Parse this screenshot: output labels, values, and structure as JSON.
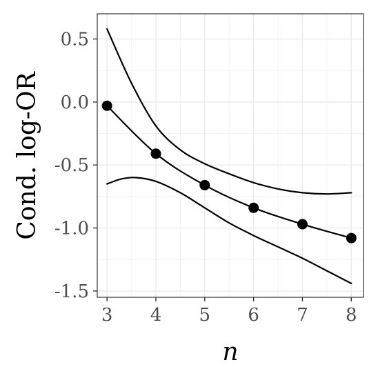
{
  "chart_data": {
    "type": "line",
    "title": "",
    "xlabel": "n",
    "ylabel": "Cond. log-OR",
    "xlim": [
      2.8,
      8.25
    ],
    "ylim": [
      -1.55,
      0.7
    ],
    "x_ticks": [
      3,
      4,
      5,
      6,
      7,
      8
    ],
    "x_tick_labels": [
      "3",
      "4",
      "5",
      "6",
      "7",
      "8"
    ],
    "y_ticks": [
      0.5,
      0.0,
      -0.5,
      -1.0,
      -1.5
    ],
    "y_tick_labels": [
      "0.5",
      "0.0",
      "-0.5",
      "-1.0",
      "-1.5"
    ],
    "grid": true,
    "legend": "none",
    "series": [
      {
        "role": "points",
        "style": "markers+line",
        "x": [
          3,
          4,
          5,
          6,
          7,
          8
        ],
        "y": [
          -0.03,
          -0.41,
          -0.66,
          -0.84,
          -0.97,
          -1.08
        ]
      },
      {
        "role": "upper-band",
        "style": "line",
        "x": [
          3,
          3.5,
          4,
          4.5,
          5,
          5.5,
          6,
          6.5,
          7,
          7.5,
          8
        ],
        "y": [
          0.58,
          0.15,
          -0.19,
          -0.38,
          -0.49,
          -0.57,
          -0.64,
          -0.69,
          -0.72,
          -0.73,
          -0.72
        ]
      },
      {
        "role": "lower-band",
        "style": "line",
        "x": [
          3,
          3.3,
          3.6,
          4,
          4.5,
          5,
          5.5,
          6,
          6.5,
          7,
          7.5,
          8
        ],
        "y": [
          -0.65,
          -0.61,
          -0.6,
          -0.63,
          -0.72,
          -0.84,
          -0.96,
          -1.06,
          -1.15,
          -1.24,
          -1.34,
          -1.44
        ]
      }
    ],
    "colors": {
      "background": "#ffffff",
      "grid_major": "#ebebeb",
      "grid_minor": "#f3f3f3",
      "axis": "#333333",
      "line": "#000000",
      "tick_text": "#4d4d4d"
    }
  }
}
